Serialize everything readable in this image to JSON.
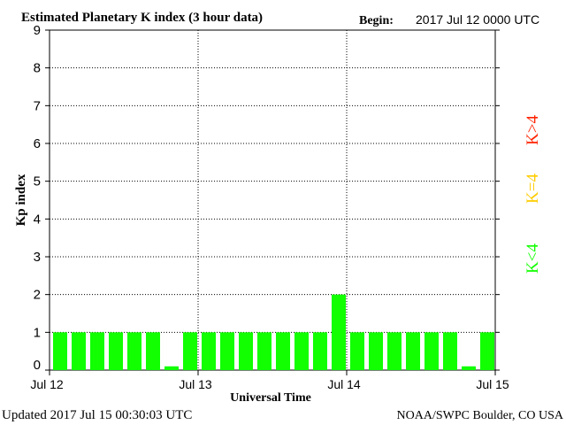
{
  "chart_data": {
    "type": "bar",
    "title": "Estimated Planetary K index (3 hour data)",
    "begin_label": "Begin:",
    "begin_value": "2017 Jul 12 0000 UTC",
    "xlabel": "Universal Time",
    "ylabel": "Kp index",
    "ylim": [
      0,
      9
    ],
    "y_ticks": [
      "0",
      "1",
      "2",
      "3",
      "4",
      "5",
      "6",
      "7",
      "8",
      "9"
    ],
    "x_ticks": [
      "Jul 12",
      "Jul 13",
      "Jul 14",
      "Jul 15"
    ],
    "grid": true,
    "values": [
      1,
      1,
      1,
      1,
      1,
      1,
      0.1,
      1,
      1,
      1,
      1,
      1,
      1,
      1,
      1,
      2,
      1,
      1,
      1,
      1,
      1,
      1,
      0.1,
      1
    ],
    "bar_color": "#11ff00",
    "legend": [
      {
        "label": "K<4",
        "color": "#11ff00"
      },
      {
        "label": "K=4",
        "color": "#ffcc00"
      },
      {
        "label": "K>4",
        "color": "#ff2200"
      }
    ],
    "legend_position": "right"
  },
  "footer": {
    "updated": "Updated 2017 Jul 15 00:30:03 UTC",
    "source": "NOAA/SWPC Boulder, CO USA"
  }
}
